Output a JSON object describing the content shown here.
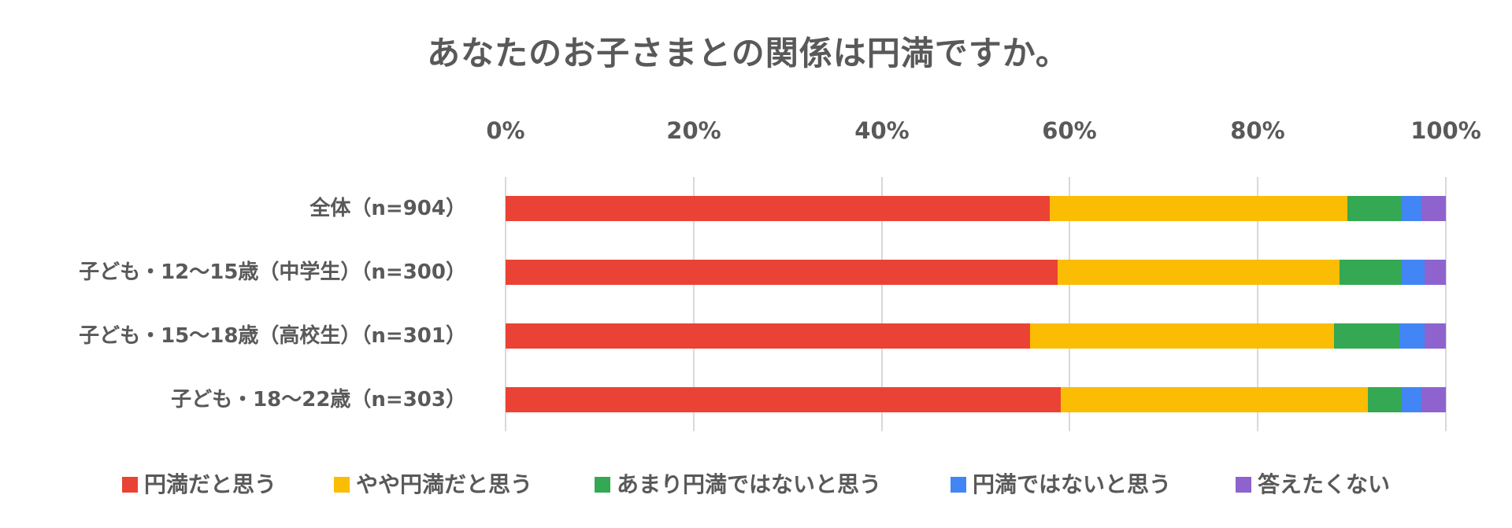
{
  "chart_data": {
    "type": "bar",
    "orientation": "horizontal",
    "stacked": "percent",
    "title": "あなたのお子さまとの関係は円満ですか。",
    "xlabel": "",
    "ylabel": "",
    "xlim": [
      0,
      100
    ],
    "x_ticks": [
      "0%",
      "20%",
      "40%",
      "60%",
      "80%",
      "100%"
    ],
    "grid": true,
    "legend_position": "bottom",
    "categories": [
      "全体（n=904）",
      "子ども・12〜15歳（中学生）（n=300）",
      "子ども・15〜18歳（高校生）（n=301）",
      "子ども・18〜22歳（n=303）"
    ],
    "series": [
      {
        "name": "円満だと思う",
        "color": "#EA4335",
        "values": [
          57.9,
          58.7,
          55.8,
          59.1
        ]
      },
      {
        "name": "やや円満だと思う",
        "color": "#FBBC04",
        "values": [
          31.6,
          30.0,
          32.3,
          32.7
        ]
      },
      {
        "name": "あまり円満ではないと思う",
        "color": "#34A853",
        "values": [
          5.7,
          6.6,
          7.0,
          3.6
        ]
      },
      {
        "name": "円満ではないと思う",
        "color": "#4285F4",
        "values": [
          2.2,
          2.4,
          2.6,
          2.1
        ]
      },
      {
        "name": "答えたくない",
        "color": "#8E63CE",
        "values": [
          2.6,
          2.3,
          2.3,
          2.6
        ]
      }
    ]
  },
  "title": "あなたのお子さまとの関係は円満ですか。",
  "axis": {
    "ticks": [
      "0%",
      "20%",
      "40%",
      "60%",
      "80%",
      "100%"
    ]
  },
  "rows": [
    {
      "label": "全体（n=904）"
    },
    {
      "label": "子ども・12〜15歳（中学生）（n=300）"
    },
    {
      "label": "子ども・15〜18歳（高校生）（n=301）"
    },
    {
      "label": "子ども・18〜22歳（n=303）"
    }
  ],
  "legend": [
    {
      "label": "円満だと思う",
      "color": "#EA4335"
    },
    {
      "label": "やや円満だと思う",
      "color": "#FBBC04"
    },
    {
      "label": "あまり円満ではないと思う",
      "color": "#34A853"
    },
    {
      "label": "円満ではないと思う",
      "color": "#4285F4"
    },
    {
      "label": "答えたくない",
      "color": "#8E63CE"
    }
  ],
  "colors": {
    "text": "#595959",
    "gridline": "#D9D9D9",
    "background": "#FFFFFF"
  }
}
